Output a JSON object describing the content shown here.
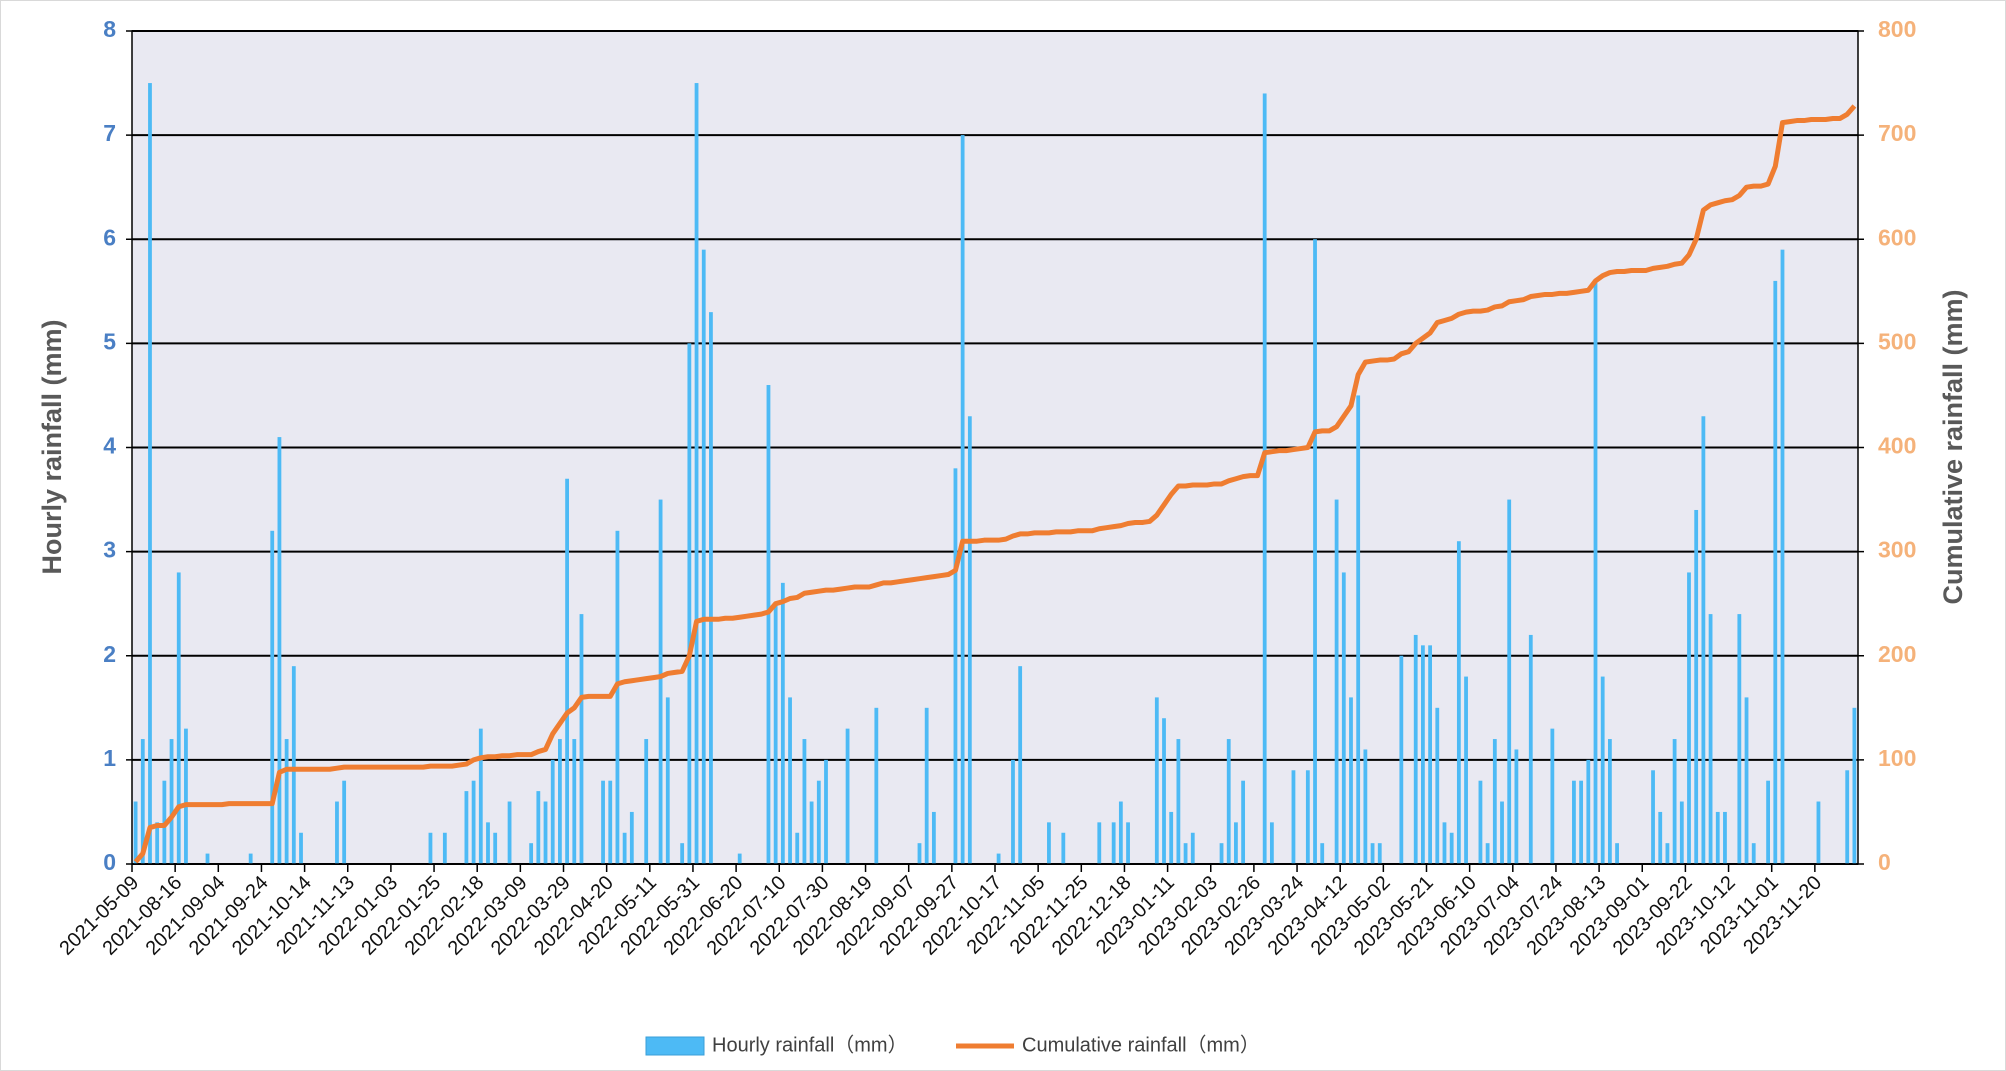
{
  "chart_data": {
    "type": "bar",
    "categories": [
      "2021-05-09",
      null,
      null,
      null,
      null,
      null,
      "2021-08-16",
      null,
      null,
      null,
      null,
      null,
      "2021-09-04",
      null,
      null,
      null,
      null,
      null,
      "2021-09-24",
      null,
      null,
      null,
      null,
      null,
      "2021-10-14",
      null,
      null,
      null,
      null,
      null,
      "2021-11-13",
      null,
      null,
      null,
      null,
      null,
      "2022-01-03",
      null,
      null,
      null,
      null,
      null,
      "2022-01-25",
      null,
      null,
      null,
      null,
      null,
      "2022-02-18",
      null,
      null,
      null,
      null,
      null,
      "2022-03-09",
      null,
      null,
      null,
      null,
      null,
      "2022-03-29",
      null,
      null,
      null,
      null,
      null,
      "2022-04-20",
      null,
      null,
      null,
      null,
      null,
      "2022-05-11",
      null,
      null,
      null,
      null,
      null,
      "2022-05-31",
      null,
      null,
      null,
      null,
      null,
      "2022-06-20",
      null,
      null,
      null,
      null,
      null,
      "2022-07-10",
      null,
      null,
      null,
      null,
      null,
      "2022-07-30",
      null,
      null,
      null,
      null,
      null,
      "2022-08-19",
      null,
      null,
      null,
      null,
      null,
      "2022-09-07",
      null,
      null,
      null,
      null,
      null,
      "2022-09-27",
      null,
      null,
      null,
      null,
      null,
      "2022-10-17",
      null,
      null,
      null,
      null,
      null,
      "2022-11-05",
      null,
      null,
      null,
      null,
      null,
      "2022-11-25",
      null,
      null,
      null,
      null,
      null,
      "2022-12-18",
      null,
      null,
      null,
      null,
      null,
      "2023-01-11",
      null,
      null,
      null,
      null,
      null,
      "2023-02-03",
      null,
      null,
      null,
      null,
      null,
      "2023-02-26",
      null,
      null,
      null,
      null,
      null,
      "2023-03-24",
      null,
      null,
      null,
      null,
      null,
      "2023-04-12",
      null,
      null,
      null,
      null,
      null,
      "2023-05-02",
      null,
      null,
      null,
      null,
      null,
      "2023-05-21",
      null,
      null,
      null,
      null,
      null,
      "2023-06-10",
      null,
      null,
      null,
      null,
      null,
      "2023-07-04",
      null,
      null,
      null,
      null,
      null,
      "2023-07-24",
      null,
      null,
      null,
      null,
      null,
      "2023-08-13",
      null,
      null,
      null,
      null,
      null,
      "2023-09-01",
      null,
      null,
      null,
      null,
      null,
      "2023-09-22",
      null,
      null,
      null,
      null,
      null,
      "2023-10-12",
      null,
      null,
      null,
      null,
      null,
      "2023-11-01",
      null,
      null,
      null,
      null,
      null,
      "2023-11-20",
      null,
      null,
      null,
      null,
      null
    ],
    "series": [
      {
        "name": "Hourly rainfall（mm）",
        "type": "bar",
        "color": "#4dbaf5",
        "values": [
          0.6,
          1.2,
          7.5,
          0.4,
          0.8,
          1.2,
          2.8,
          1.3,
          0,
          0,
          0.1,
          0,
          0,
          0,
          0,
          0,
          0.1,
          0,
          0,
          3.2,
          4.1,
          1.2,
          1.9,
          0.3,
          0,
          0,
          0,
          0,
          0.6,
          0.8,
          0,
          0,
          0,
          0,
          0,
          0,
          0,
          0,
          0,
          0,
          0,
          0.3,
          0,
          0.3,
          0,
          0,
          0.7,
          0.8,
          1.3,
          0.4,
          0.3,
          0,
          0.6,
          0,
          0,
          0.2,
          0.7,
          0.6,
          1.0,
          1.2,
          3.7,
          1.2,
          2.4,
          0,
          0,
          0.8,
          0.8,
          3.2,
          0.3,
          0.5,
          0,
          1.2,
          0,
          3.5,
          1.6,
          0,
          0.2,
          5.0,
          7.5,
          5.9,
          5.3,
          0,
          0,
          0,
          0.1,
          0,
          0,
          0,
          4.6,
          2.5,
          2.7,
          1.6,
          0.3,
          1.2,
          0.6,
          0.8,
          1.0,
          0,
          0,
          1.3,
          0,
          0,
          0,
          1.5,
          0,
          0,
          0,
          0,
          0,
          0.2,
          1.5,
          0.5,
          0,
          0,
          3.8,
          7.0,
          4.3,
          0,
          0,
          0,
          0.1,
          0,
          1.0,
          1.9,
          0,
          0,
          0,
          0.4,
          0,
          0.3,
          0,
          0,
          0,
          0,
          0.4,
          0,
          0.4,
          0.6,
          0.4,
          0,
          0,
          0,
          1.6,
          1.4,
          0.5,
          1.2,
          0.2,
          0.3,
          0,
          0,
          0,
          0.2,
          1.2,
          0.4,
          0.8,
          0,
          0,
          7.4,
          0.4,
          0,
          0,
          0.9,
          0,
          0.9,
          6.0,
          0.2,
          0,
          3.5,
          2.8,
          1.6,
          4.5,
          1.1,
          0.2,
          0.2,
          0,
          0,
          2.0,
          0,
          2.2,
          2.1,
          2.1,
          1.5,
          0.4,
          0.3,
          3.1,
          1.8,
          0,
          0.8,
          0.2,
          1.2,
          0.6,
          3.5,
          1.1,
          0,
          2.2,
          0,
          0,
          1.3,
          0,
          0,
          0.8,
          0.8,
          1.0,
          5.6,
          1.8,
          1.2,
          0.2,
          0,
          0,
          0,
          0,
          0.9,
          0.5,
          0.2,
          1.2,
          0.6,
          2.8,
          3.4,
          4.3,
          2.4,
          0.5,
          0.5,
          0,
          2.4,
          1.6,
          0.2,
          0,
          0.8,
          5.6,
          5.9,
          0,
          0,
          0,
          0,
          0.6,
          0,
          0,
          0,
          0.9,
          1.5
        ]
      },
      {
        "name": "Cumulative rainfall（mm）",
        "type": "line",
        "axis": "y2",
        "color": "#ef7d31",
        "values": [
          2,
          10,
          35,
          37,
          37,
          45,
          55,
          57,
          57,
          57,
          57,
          57,
          57,
          58,
          58,
          58,
          58,
          58,
          58,
          58,
          88,
          91,
          91,
          91,
          91,
          91,
          91,
          91,
          92,
          93,
          93,
          93,
          93,
          93,
          93,
          93,
          93,
          93,
          93,
          93,
          93,
          94,
          94,
          94,
          94,
          95,
          96,
          100,
          102,
          103,
          103,
          104,
          104,
          105,
          105,
          105,
          108,
          110,
          125,
          135,
          145,
          150,
          160,
          161,
          161,
          161,
          161,
          173,
          175,
          176,
          177,
          178,
          179,
          180,
          183,
          184,
          185,
          200,
          233,
          235,
          235,
          235,
          236,
          236,
          237,
          238,
          239,
          240,
          242,
          250,
          252,
          255,
          256,
          260,
          261,
          262,
          263,
          263,
          264,
          265,
          266,
          266,
          266,
          268,
          270,
          270,
          271,
          272,
          273,
          274,
          275,
          276,
          277,
          278,
          282,
          310,
          310,
          310,
          311,
          311,
          311,
          312,
          315,
          317,
          317,
          318,
          318,
          318,
          319,
          319,
          319,
          320,
          320,
          320,
          322,
          323,
          324,
          325,
          327,
          328,
          328,
          329,
          335,
          345,
          355,
          363,
          363,
          364,
          364,
          364,
          365,
          365,
          368,
          370,
          372,
          373,
          373,
          395,
          396,
          397,
          397,
          398,
          399,
          400,
          415,
          416,
          416,
          420,
          430,
          440,
          470,
          482,
          483,
          484,
          484,
          485,
          490,
          492,
          500,
          505,
          510,
          520,
          522,
          524,
          528,
          530,
          531,
          531,
          532,
          535,
          536,
          540,
          541,
          542,
          545,
          546,
          547,
          547,
          548,
          548,
          549,
          550,
          551,
          560,
          565,
          568,
          569,
          569,
          570,
          570,
          570,
          572,
          573,
          574,
          576,
          577,
          585,
          600,
          628,
          633,
          635,
          637,
          638,
          642,
          650,
          651,
          651,
          653,
          670,
          712,
          713,
          714,
          714,
          715,
          715,
          715,
          716,
          716,
          720,
          728
        ]
      }
    ],
    "y_label": "Hourly rainfall (mm)",
    "y2_label": "Cumulative rainfall (mm)",
    "ylim": [
      0,
      8
    ],
    "yticks": [
      0,
      1,
      2,
      3,
      4,
      5,
      6,
      7,
      8
    ],
    "y2lim": [
      0,
      800
    ],
    "y2ticks": [
      0,
      100,
      200,
      300,
      400,
      500,
      600,
      700,
      800
    ],
    "grid": true,
    "legend": "bottom"
  }
}
